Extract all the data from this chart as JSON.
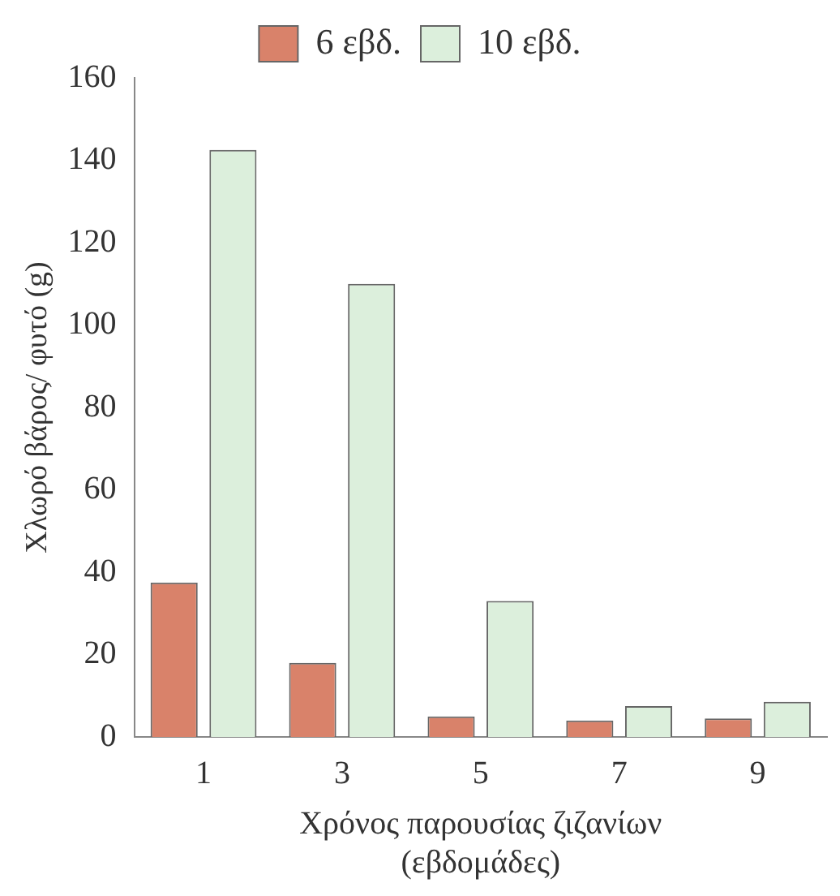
{
  "chart_data": {
    "type": "bar",
    "categories": [
      "1",
      "3",
      "5",
      "7",
      "9"
    ],
    "series": [
      {
        "name": "6 εβδ.",
        "color": "#d9826a",
        "values": [
          37.5,
          18,
          5,
          4,
          4.5
        ]
      },
      {
        "name": "10 εβδ.",
        "color": "#dcefdc",
        "values": [
          142.5,
          110,
          33,
          7.5,
          8.5
        ]
      }
    ],
    "ylim": [
      0,
      160
    ],
    "yticks": [
      0,
      20,
      40,
      60,
      80,
      100,
      120,
      140,
      160
    ],
    "ylabel": "Χλωρό βάρος/ φυτό (g)",
    "xlabel": "Χρόνος παρουσίας ζιζανίων\n(εβδομάδες)",
    "grid": false,
    "legend": "top"
  }
}
